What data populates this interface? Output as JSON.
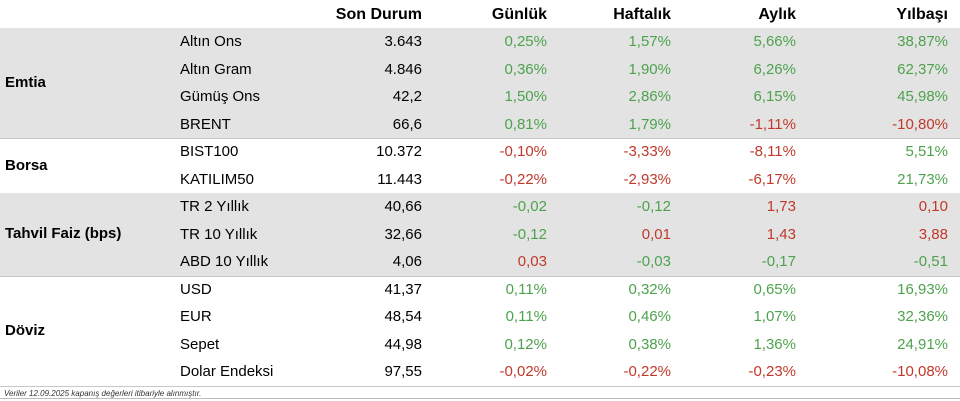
{
  "colors": {
    "positive": "#4ea24e",
    "negative": "#c0392b",
    "neutral": "#000000",
    "shade": "#e3e3e3"
  },
  "headers": [
    "Son Durum",
    "Günlük",
    "Haftalık",
    "Aylık",
    "Yılbaşı"
  ],
  "groups": [
    {
      "label": "Emtia",
      "shaded": true,
      "rows": [
        {
          "name": "Altın Ons",
          "last": "3.643",
          "values": [
            "0,25%",
            "1,57%",
            "5,66%",
            "38,87%"
          ]
        },
        {
          "name": "Altın Gram",
          "last": "4.846",
          "values": [
            "0,36%",
            "1,90%",
            "6,26%",
            "62,37%"
          ]
        },
        {
          "name": "Gümüş Ons",
          "last": "42,2",
          "values": [
            "1,50%",
            "2,86%",
            "6,15%",
            "45,98%"
          ]
        },
        {
          "name": "BRENT",
          "last": "66,6",
          "values": [
            "0,81%",
            "1,79%",
            "-1,11%",
            "-10,80%"
          ]
        }
      ]
    },
    {
      "label": "Borsa",
      "shaded": false,
      "rows": [
        {
          "name": "BIST100",
          "last": "10.372",
          "values": [
            "-0,10%",
            "-3,33%",
            "-8,11%",
            "5,51%"
          ]
        },
        {
          "name": "KATILIM50",
          "last": "11.443",
          "values": [
            "-0,22%",
            "-2,93%",
            "-6,17%",
            "21,73%"
          ]
        }
      ]
    },
    {
      "label": "Tahvil Faiz (bps)",
      "shaded": true,
      "rows": [
        {
          "name": "TR 2 Yıllık",
          "last": "40,66",
          "values": [
            "-0,02",
            "-0,12",
            "1,73",
            "0,10"
          ],
          "colors": [
            "positive",
            "positive",
            "negative",
            "negative"
          ]
        },
        {
          "name": "TR 10 Yıllık",
          "last": "32,66",
          "values": [
            "-0,12",
            "0,01",
            "1,43",
            "3,88"
          ],
          "colors": [
            "positive",
            "negative",
            "negative",
            "negative"
          ]
        },
        {
          "name": "ABD 10 Yıllık",
          "last": "4,06",
          "values": [
            "0,03",
            "-0,03",
            "-0,17",
            "-0,51"
          ],
          "colors": [
            "negative",
            "positive",
            "positive",
            "positive"
          ]
        }
      ]
    },
    {
      "label": "Döviz",
      "shaded": false,
      "rows": [
        {
          "name": "USD",
          "last": "41,37",
          "values": [
            "0,11%",
            "0,32%",
            "0,65%",
            "16,93%"
          ]
        },
        {
          "name": "EUR",
          "last": "48,54",
          "values": [
            "0,11%",
            "0,46%",
            "1,07%",
            "32,36%"
          ]
        },
        {
          "name": "Sepet",
          "last": "44,98",
          "values": [
            "0,12%",
            "0,38%",
            "1,36%",
            "24,91%"
          ]
        },
        {
          "name": "Dolar Endeksi",
          "last": "97,55",
          "values": [
            "-0,02%",
            "-0,22%",
            "-0,23%",
            "-10,08%"
          ],
          "colors": [
            "negative",
            "negative",
            "negative",
            "negative"
          ]
        }
      ]
    }
  ],
  "footnote": "Veriler 12.09.2025  kapanış değerleri itibariyle  alınmıştır."
}
